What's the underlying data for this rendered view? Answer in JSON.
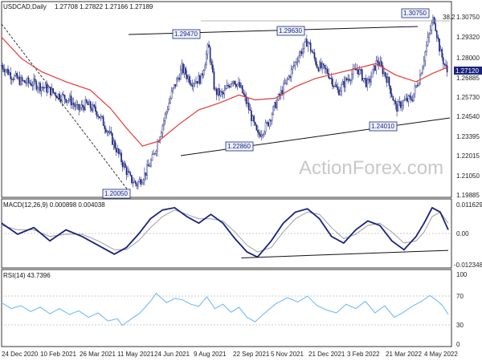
{
  "header": {
    "symbol": "USDCAD,Daily",
    "ohlc": "1.27708 1.27822 1.27166 1.27189"
  },
  "watermark": "ActionForex.com",
  "price_panel": {
    "y_ticks": [
      "1.30750",
      "1.29320",
      "1.28000",
      "1.26885",
      "1.25730",
      "1.24540",
      "1.23395",
      "1.22015",
      "1.21050",
      "1.19885"
    ],
    "last_price": "1.27120",
    "fib_label": "38.2",
    "pivot_labels": [
      "1.30750",
      "1.29470",
      "1.29630",
      "1.22860",
      "1.24010",
      "1.20050"
    ]
  },
  "macd_panel": {
    "title": "MACD(12,26,9) 0.000898 0.004038",
    "y_ticks": [
      "0.011629",
      "0.00",
      "-0.012348"
    ]
  },
  "rsi_panel": {
    "title": "RSI(14) 43.7396",
    "y_ticks": [
      "100",
      "70",
      "30",
      "0"
    ]
  },
  "x_ticks": [
    "24 Dec 2020",
    "10 Feb 2021",
    "26 Mar 2021",
    "11 May 2021",
    "24 Jun 2021",
    "9 Aug 2021",
    "22 Sep 2021",
    "5 Nov 2021",
    "21 Dec 2021",
    "3 Feb 2022",
    "21 Mar 2022",
    "4 May 2022"
  ],
  "colors": {
    "candle": "#1a237e",
    "ma": "#e53935",
    "macd": "#1a237e",
    "signal": "#9e9e9e",
    "rsi": "#64b5f6",
    "trend": "#111111"
  },
  "chart_data": [
    {
      "type": "candlestick",
      "title": "USDCAD,Daily",
      "ylim": [
        1.19885,
        1.3108
      ],
      "close_path": [
        [
          0,
          1.278
        ],
        [
          12,
          1.272
        ],
        [
          25,
          1.268
        ],
        [
          40,
          1.267
        ],
        [
          55,
          1.264
        ],
        [
          70,
          1.26
        ],
        [
          85,
          1.257
        ],
        [
          95,
          1.251
        ],
        [
          105,
          1.2545
        ],
        [
          118,
          1.25
        ],
        [
          130,
          1.24
        ],
        [
          140,
          1.23
        ],
        [
          150,
          1.219
        ],
        [
          160,
          1.209
        ],
        [
          168,
          1.2058
        ],
        [
          178,
          1.212
        ],
        [
          188,
          1.222
        ],
        [
          200,
          1.242
        ],
        [
          212,
          1.262
        ],
        [
          224,
          1.276
        ],
        [
          236,
          1.268
        ],
        [
          248,
          1.27
        ],
        [
          257,
          1.29
        ],
        [
          265,
          1.262
        ],
        [
          275,
          1.26
        ],
        [
          287,
          1.27
        ],
        [
          297,
          1.264
        ],
        [
          307,
          1.252
        ],
        [
          318,
          1.235
        ],
        [
          330,
          1.242
        ],
        [
          342,
          1.256
        ],
        [
          355,
          1.269
        ],
        [
          368,
          1.283
        ],
        [
          380,
          1.293
        ],
        [
          392,
          1.278
        ],
        [
          405,
          1.274
        ],
        [
          418,
          1.262
        ],
        [
          430,
          1.27
        ],
        [
          442,
          1.276
        ],
        [
          455,
          1.266
        ],
        [
          467,
          1.281
        ],
        [
          479,
          1.27
        ],
        [
          490,
          1.252
        ],
        [
          500,
          1.256
        ],
        [
          510,
          1.258
        ],
        [
          520,
          1.272
        ],
        [
          530,
          1.294
        ],
        [
          537,
          1.3075
        ],
        [
          545,
          1.286
        ],
        [
          555,
          1.272
        ]
      ],
      "ma_path": [
        [
          0,
          1.295
        ],
        [
          25,
          1.282
        ],
        [
          50,
          1.274
        ],
        [
          80,
          1.268
        ],
        [
          110,
          1.263
        ],
        [
          135,
          1.252
        ],
        [
          155,
          1.24
        ],
        [
          175,
          1.229
        ],
        [
          195,
          1.232
        ],
        [
          220,
          1.242
        ],
        [
          245,
          1.251
        ],
        [
          270,
          1.255
        ],
        [
          295,
          1.26
        ],
        [
          315,
          1.257
        ],
        [
          340,
          1.258
        ],
        [
          365,
          1.265
        ],
        [
          390,
          1.27
        ],
        [
          415,
          1.273
        ],
        [
          440,
          1.276
        ],
        [
          465,
          1.279
        ],
        [
          490,
          1.272
        ],
        [
          515,
          1.268
        ],
        [
          535,
          1.273
        ],
        [
          555,
          1.277
        ]
      ]
    },
    {
      "type": "line",
      "title": "MACD(12,26,9) 0.000898 0.004038",
      "ylim": [
        -0.0155,
        0.0135
      ],
      "macd": [
        [
          0,
          0.004
        ],
        [
          20,
          -0.001
        ],
        [
          40,
          0.002
        ],
        [
          60,
          -0.004
        ],
        [
          80,
          0.001
        ],
        [
          100,
          -0.002
        ],
        [
          120,
          -0.006
        ],
        [
          140,
          -0.01
        ],
        [
          155,
          -0.007
        ],
        [
          170,
          -0.001
        ],
        [
          185,
          0.006
        ],
        [
          200,
          0.01
        ],
        [
          215,
          0.011
        ],
        [
          230,
          0.007
        ],
        [
          245,
          0.004
        ],
        [
          260,
          0.008
        ],
        [
          275,
          0.004
        ],
        [
          290,
          -0.003
        ],
        [
          305,
          -0.009
        ],
        [
          318,
          -0.0113
        ],
        [
          335,
          -0.004
        ],
        [
          350,
          0.004
        ],
        [
          365,
          0.009
        ],
        [
          380,
          0.0105
        ],
        [
          395,
          0.006
        ],
        [
          410,
          -0.002
        ],
        [
          425,
          -0.005
        ],
        [
          440,
          0.001
        ],
        [
          455,
          0.005
        ],
        [
          470,
          0.003
        ],
        [
          485,
          -0.004
        ],
        [
          500,
          -0.008
        ],
        [
          515,
          -0.002
        ],
        [
          525,
          0.004
        ],
        [
          535,
          0.011
        ],
        [
          545,
          0.009
        ],
        [
          555,
          0.001
        ]
      ],
      "signal": [
        [
          0,
          0.003
        ],
        [
          20,
          0.001
        ],
        [
          40,
          0.001
        ],
        [
          60,
          -0.002
        ],
        [
          80,
          -0.001
        ],
        [
          100,
          -0.001
        ],
        [
          120,
          -0.004
        ],
        [
          140,
          -0.008
        ],
        [
          155,
          -0.008
        ],
        [
          170,
          -0.004
        ],
        [
          185,
          0.002
        ],
        [
          200,
          0.007
        ],
        [
          215,
          0.01
        ],
        [
          230,
          0.008
        ],
        [
          245,
          0.006
        ],
        [
          260,
          0.006
        ],
        [
          275,
          0.005
        ],
        [
          290,
          0.0
        ],
        [
          305,
          -0.006
        ],
        [
          318,
          -0.009
        ],
        [
          335,
          -0.007
        ],
        [
          350,
          0.0
        ],
        [
          365,
          0.006
        ],
        [
          380,
          0.009
        ],
        [
          395,
          0.008
        ],
        [
          410,
          0.002
        ],
        [
          425,
          -0.003
        ],
        [
          440,
          -0.001
        ],
        [
          455,
          0.003
        ],
        [
          470,
          0.004
        ],
        [
          485,
          0.0
        ],
        [
          500,
          -0.005
        ],
        [
          515,
          -0.004
        ],
        [
          525,
          0.0
        ],
        [
          535,
          0.007
        ],
        [
          545,
          0.009
        ],
        [
          555,
          0.004
        ]
      ],
      "trendline": [
        [
          298,
          -0.0117
        ],
        [
          555,
          -0.0083
        ]
      ]
    },
    {
      "type": "line",
      "title": "RSI(14) 43.7396",
      "ylim": [
        0,
        100
      ],
      "levels": [
        70,
        30
      ],
      "rsi": [
        [
          0,
          60
        ],
        [
          12,
          52
        ],
        [
          24,
          56
        ],
        [
          36,
          48
        ],
        [
          48,
          54
        ],
        [
          60,
          45
        ],
        [
          72,
          52
        ],
        [
          84,
          44
        ],
        [
          96,
          49
        ],
        [
          108,
          40
        ],
        [
          120,
          46
        ],
        [
          132,
          35
        ],
        [
          144,
          38
        ],
        [
          150,
          29
        ],
        [
          160,
          37
        ],
        [
          172,
          46
        ],
        [
          185,
          62
        ],
        [
          192,
          73
        ],
        [
          205,
          60
        ],
        [
          215,
          66
        ],
        [
          225,
          64
        ],
        [
          235,
          58
        ],
        [
          245,
          55
        ],
        [
          255,
          68
        ],
        [
          265,
          52
        ],
        [
          275,
          58
        ],
        [
          285,
          47
        ],
        [
          295,
          54
        ],
        [
          305,
          40
        ],
        [
          315,
          34
        ],
        [
          325,
          44
        ],
        [
          340,
          58
        ],
        [
          355,
          67
        ],
        [
          368,
          61
        ],
        [
          380,
          69
        ],
        [
          392,
          56
        ],
        [
          404,
          50
        ],
        [
          416,
          46
        ],
        [
          428,
          58
        ],
        [
          440,
          52
        ],
        [
          452,
          62
        ],
        [
          464,
          46
        ],
        [
          476,
          56
        ],
        [
          488,
          40
        ],
        [
          498,
          46
        ],
        [
          510,
          55
        ],
        [
          522,
          62
        ],
        [
          532,
          70
        ],
        [
          540,
          64
        ],
        [
          548,
          56
        ],
        [
          555,
          44
        ]
      ]
    }
  ]
}
